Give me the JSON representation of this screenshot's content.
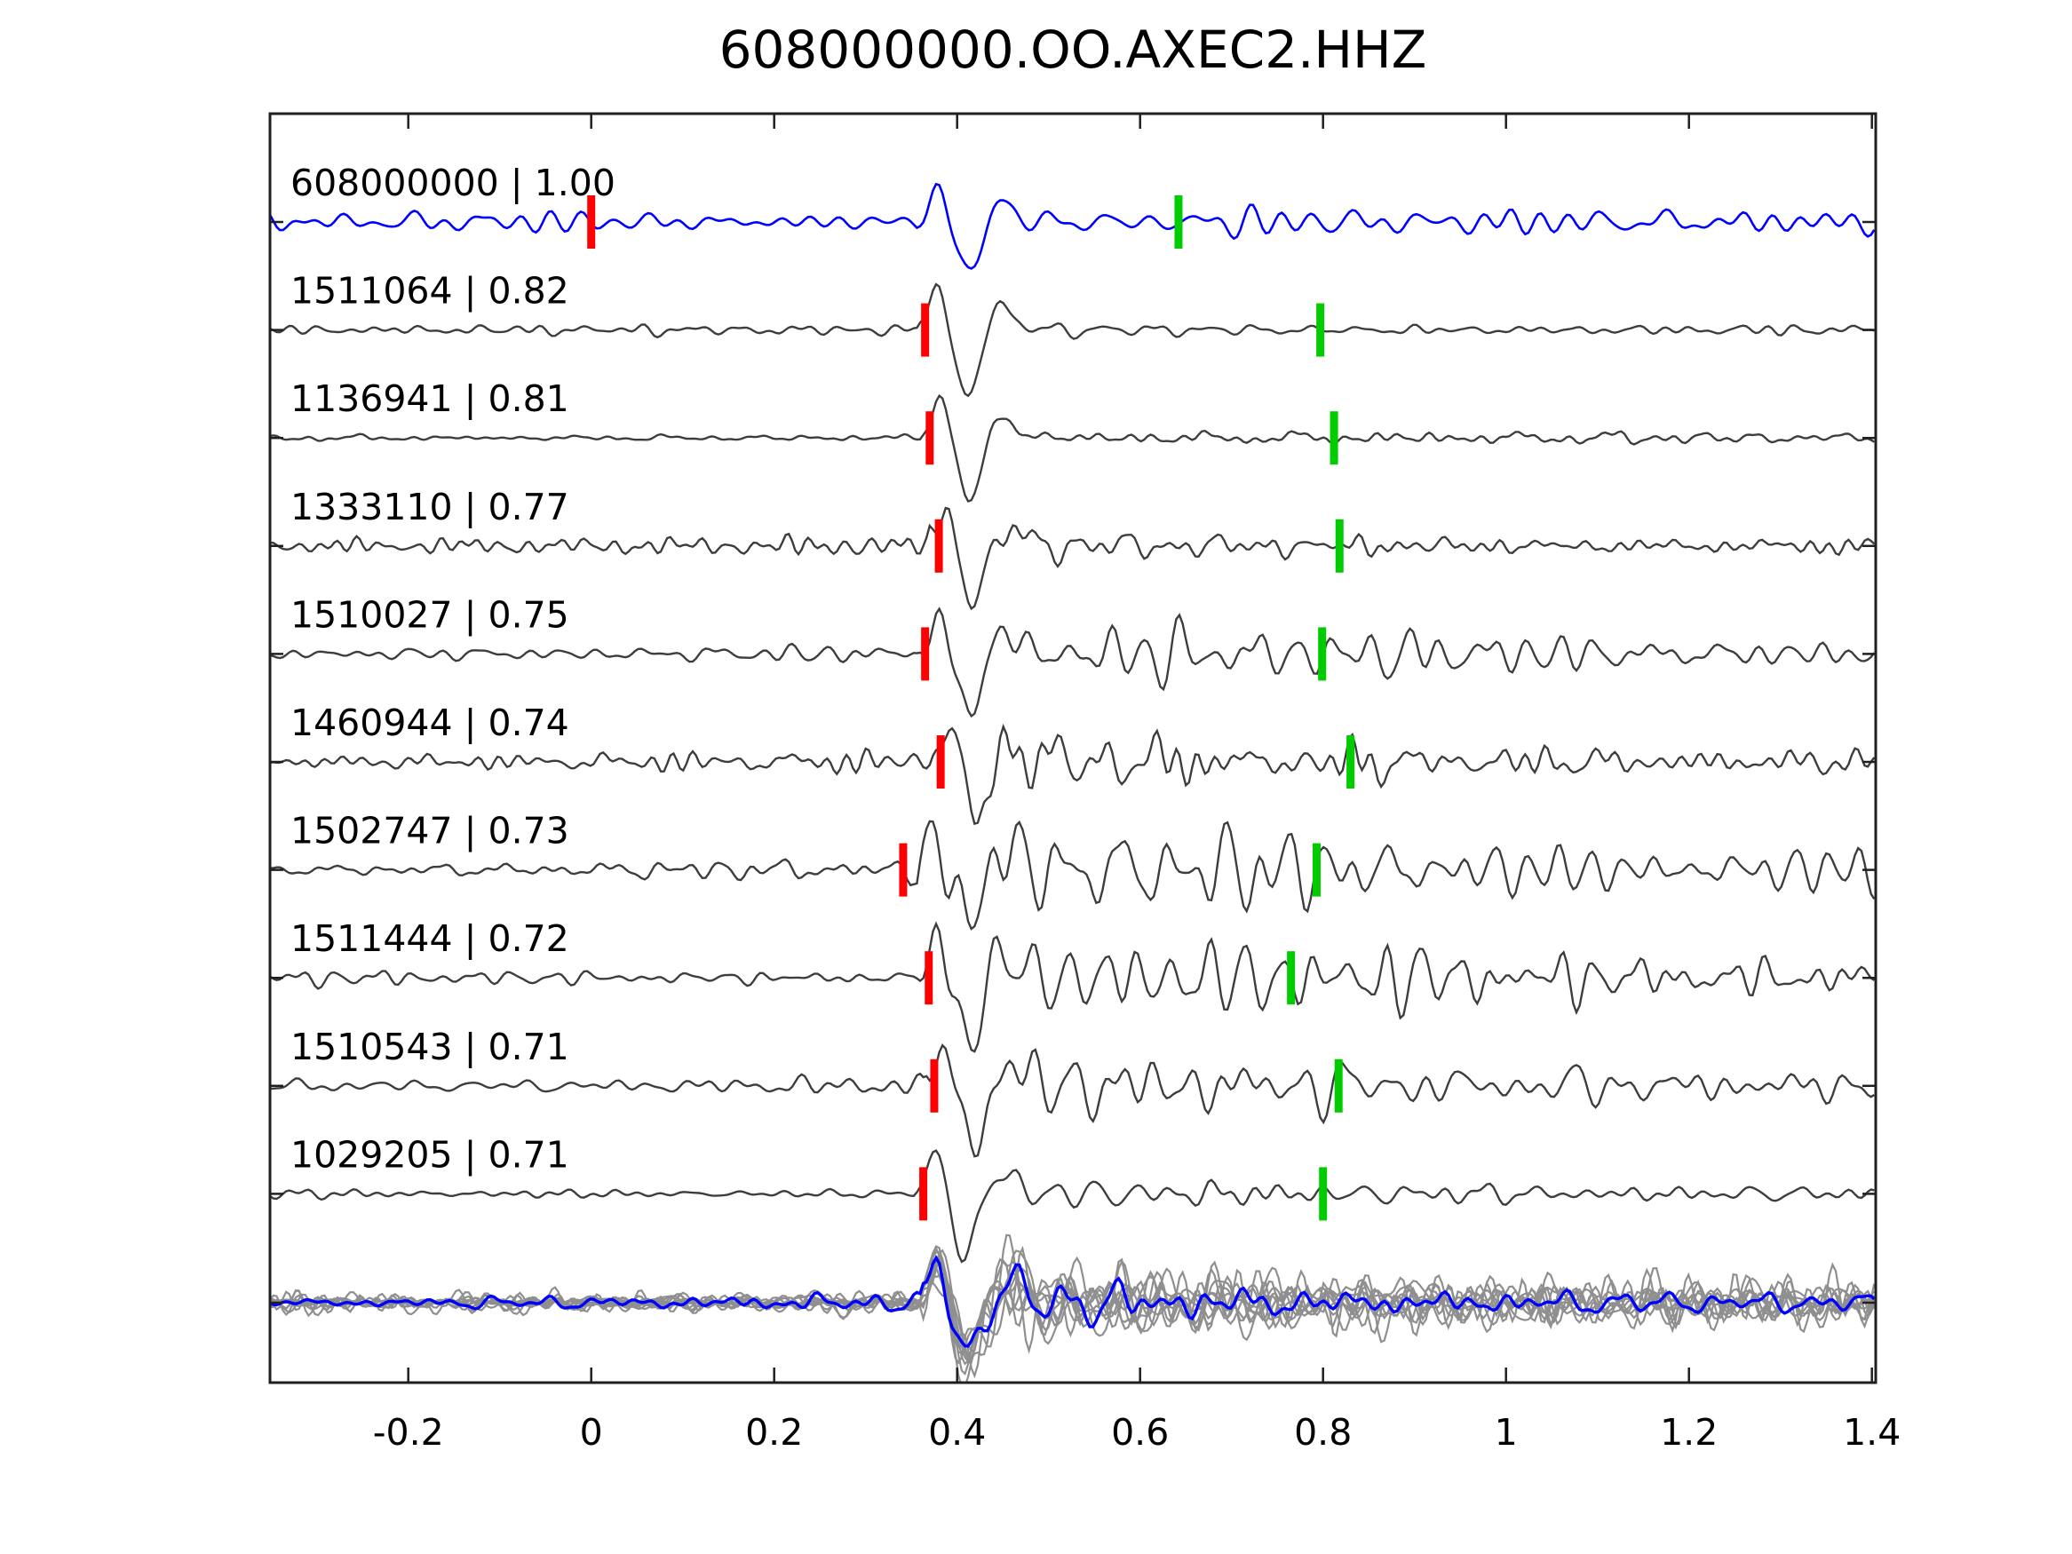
{
  "title": "608000000.OO.AXEC2.HHZ",
  "colors": {
    "template_blue": "#0000ff",
    "detection_gray": "#3d3d3d",
    "stack_gray": "#8f8f8f",
    "pick_red": "#ff0000",
    "pick_green": "#00cc00",
    "axis": "#1f1f1f",
    "background": "#ffffff"
  },
  "chart_data": {
    "type": "line",
    "title": "608000000.OO.AXEC2.HHZ",
    "description": "Template-matching seismogram panel: template waveform (blue) and cross-correlation detections (gray) aligned on a common time axis. Red bars mark template pick times, green bars mark later phase picks. Bottom band overlays all detections (gray) with the template/stack (blue).",
    "x_axis": {
      "tick_labels": [
        "-0.2",
        "0",
        "0.2",
        "0.4",
        "0.6",
        "0.8",
        "1",
        "1.2",
        "1.4"
      ],
      "tick_values": [
        -0.2,
        0,
        0.2,
        0.4,
        0.6,
        0.8,
        1.0,
        1.2,
        1.4
      ],
      "range": [
        -0.351,
        1.404
      ],
      "grid": false
    },
    "y_axis": {
      "labels": [],
      "note": "traces offset vertically, no numeric scale shown"
    },
    "legend": {
      "shown": false
    },
    "traces": [
      {
        "id": "608000000",
        "correlation": "1.00",
        "label": "608000000 | 1.00",
        "role": "template",
        "color": "#0000ff",
        "red_pick_time": 0.0,
        "green_pick_time": 0.642,
        "wave": {
          "noise": 10,
          "spike": 46,
          "coda": 13,
          "onset": 0.358,
          "decay": 0.35,
          "post": 1.1,
          "seed": 11
        }
      },
      {
        "id": "1511064",
        "correlation": "0.82",
        "label": "1511064 | 0.82",
        "role": "detection",
        "color": "#3d3d3d",
        "red_pick_time": 0.365,
        "green_pick_time": 0.797,
        "wave": {
          "noise": 3.5,
          "spike": 60,
          "coda": 9,
          "onset": 0.358,
          "decay": 0.3,
          "post": 1.4,
          "seed": 22
        }
      },
      {
        "id": "1136941",
        "correlation": "0.81",
        "label": "1136941 | 0.81",
        "role": "detection",
        "color": "#3d3d3d",
        "red_pick_time": 0.37,
        "green_pick_time": 0.812,
        "wave": {
          "noise": 3.5,
          "spike": 56,
          "coda": 9,
          "onset": 0.362,
          "decay": 0.3,
          "post": 1.4,
          "seed": 33
        }
      },
      {
        "id": "1333110",
        "correlation": "0.77",
        "label": "1333110 | 0.77",
        "role": "detection",
        "color": "#3d3d3d",
        "red_pick_time": 0.38,
        "green_pick_time": 0.818,
        "wave": {
          "noise": 6,
          "spike": 50,
          "coda": 14,
          "onset": 0.368,
          "decay": 0.4,
          "post": 1.5,
          "seed": 44
        }
      },
      {
        "id": "1510027",
        "correlation": "0.75",
        "label": "1510027 | 0.75",
        "role": "detection",
        "color": "#3d3d3d",
        "red_pick_time": 0.365,
        "green_pick_time": 0.799,
        "wave": {
          "noise": 9,
          "spike": 56,
          "coda": 20,
          "onset": 0.358,
          "decay": 0.45,
          "post": 1.9,
          "seed": 55
        }
      },
      {
        "id": "1460944",
        "correlation": "0.74",
        "label": "1460944 | 0.74",
        "role": "detection",
        "color": "#3d3d3d",
        "red_pick_time": 0.382,
        "green_pick_time": 0.83,
        "wave": {
          "noise": 8,
          "spike": 52,
          "coda": 20,
          "onset": 0.37,
          "decay": 0.48,
          "post": 1.9,
          "seed": 66
        }
      },
      {
        "id": "1502747",
        "correlation": "0.73",
        "label": "1502747 | 0.73",
        "role": "detection",
        "color": "#3d3d3d",
        "red_pick_time": 0.341,
        "green_pick_time": 0.793,
        "wave": {
          "noise": 11,
          "spike": 60,
          "coda": 28,
          "onset": 0.355,
          "decay": 0.55,
          "post": 2.2,
          "seed": 77
        }
      },
      {
        "id": "1511444",
        "correlation": "0.72",
        "label": "1511444 | 0.72",
        "role": "detection",
        "color": "#3d3d3d",
        "red_pick_time": 0.369,
        "green_pick_time": 0.765,
        "wave": {
          "noise": 8,
          "spike": 60,
          "coda": 26,
          "onset": 0.36,
          "decay": 0.52,
          "post": 2.1,
          "seed": 88
        }
      },
      {
        "id": "1510543",
        "correlation": "0.71",
        "label": "1510543 | 0.71",
        "role": "detection",
        "color": "#3d3d3d",
        "red_pick_time": 0.375,
        "green_pick_time": 0.817,
        "wave": {
          "noise": 9,
          "spike": 54,
          "coda": 18,
          "onset": 0.365,
          "decay": 0.45,
          "post": 1.8,
          "seed": 99
        }
      },
      {
        "id": "1029205",
        "correlation": "0.71",
        "label": "1029205 | 0.71",
        "role": "detection",
        "color": "#3d3d3d",
        "red_pick_time": 0.363,
        "green_pick_time": 0.8,
        "wave": {
          "noise": 5,
          "spike": 58,
          "coda": 14,
          "onset": 0.356,
          "decay": 0.4,
          "post": 1.5,
          "seed": 110
        }
      }
    ],
    "stack": {
      "description": "all detection waveforms overlaid (gray) with template stack on top (blue)",
      "member_count": 10,
      "member_color": "#8f8f8f",
      "stack_color": "#0000ff",
      "member_wave": {
        "noise": 7,
        "spike": 52,
        "coda": 22,
        "onset": 0.36,
        "decay": 0.55,
        "post": 2.6,
        "seed": 200
      },
      "stack_wave": {
        "noise": 6,
        "spike": 55,
        "coda": 18,
        "onset": 0.36,
        "decay": 0.45,
        "post": 2.0,
        "seed": 220
      }
    }
  }
}
